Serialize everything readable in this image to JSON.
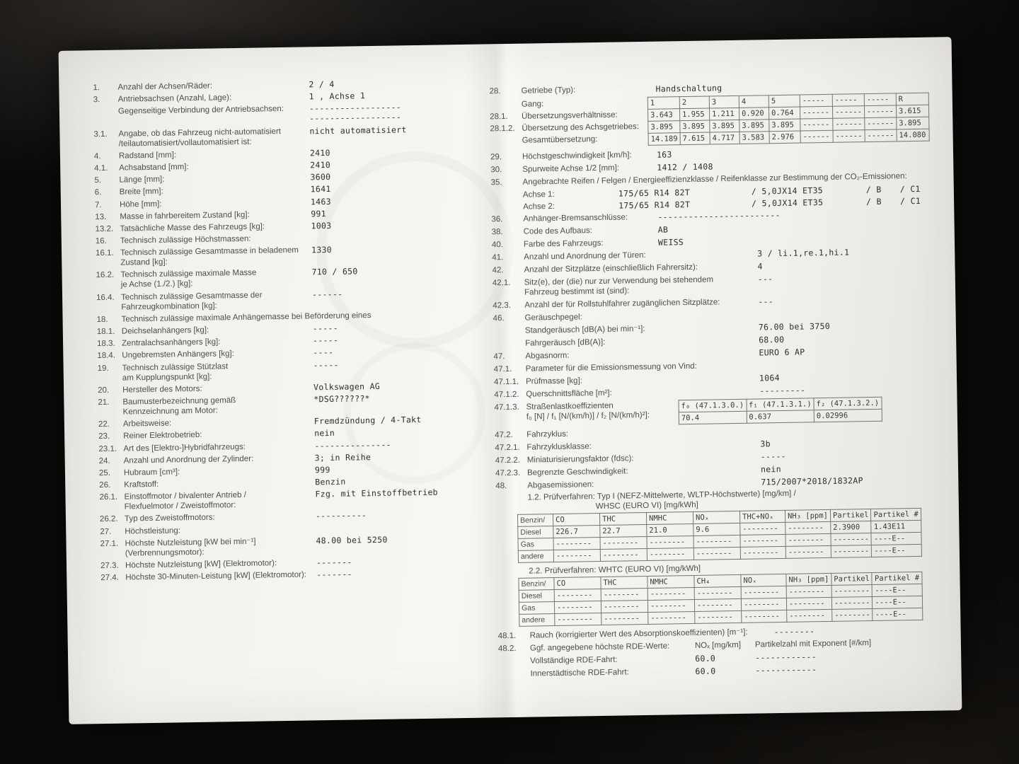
{
  "colors": {
    "photo_background": "#0b0a09",
    "paper": "#f4f3ef",
    "ink_label": "#4c4c4c",
    "ink_value": "#2e2e2e",
    "table_border": "#767470"
  },
  "left": {
    "rows": [
      {
        "n": "1.",
        "l": "Anzahl der Achsen/Räder:",
        "v": "2  / 4"
      },
      {
        "n": "3.",
        "l": "Antriebsachsen (Anzahl, Lage):",
        "v": "1 , Achse 1"
      },
      {
        "n": "",
        "l": "Gegenseitige Verbindung der Antriebsachsen:",
        "v": "------------------",
        "v2": "------------------"
      },
      {
        "n": "3.1.",
        "l": "Angabe, ob das Fahrzeug nicht-automatisiert",
        "l2": "/teilautomatisiert/vollautomatisiert ist:",
        "v": "nicht automatisiert"
      },
      {
        "n": "4.",
        "l": "Radstand [mm]:",
        "v": "2410"
      },
      {
        "n": "4.1.",
        "l": "Achsabstand [mm]:",
        "v": "2410"
      },
      {
        "n": "5.",
        "l": "Länge [mm]:",
        "v": "3600"
      },
      {
        "n": "6.",
        "l": "Breite [mm]:",
        "v": "1641"
      },
      {
        "n": "7.",
        "l": "Höhe [mm]:",
        "v": "1463"
      },
      {
        "n": "13.",
        "l": "Masse in fahrbereitem Zustand [kg]:",
        "v": "991"
      },
      {
        "n": "13.2.",
        "l": "Tatsächliche Masse des Fahrzeugs [kg]:",
        "v": "1003"
      },
      {
        "n": "16.",
        "l": "Technisch zulässige Höchstmassen:",
        "v": ""
      },
      {
        "n": "16.1.",
        "l": "Technisch zulässige Gesamtmasse in beladenem",
        "l2": "Zustand [kg]:",
        "v": "1330"
      },
      {
        "n": "16.2.",
        "l": "Technisch zulässige maximale Masse",
        "l2": "je Achse (1./2.) [kg]:",
        "v": "710  / 650"
      },
      {
        "n": "16.4.",
        "l": "Technisch zulässige Gesamtmasse der",
        "l2": "Fahrzeugkombination [kg]:",
        "v": "------"
      },
      {
        "n": "18.",
        "l": "Technisch zulässige maximale Anhängemasse bei Beförderung eines",
        "v": ""
      },
      {
        "n": "18.1.",
        "l": "Deichselanhängers [kg]:",
        "v": "-----"
      },
      {
        "n": "18.3.",
        "l": "Zentralachsanhängers [kg]:",
        "v": "-----"
      },
      {
        "n": "18.4.",
        "l": "Ungebremsten Anhängers [kg]:",
        "v": "----"
      },
      {
        "n": "19.",
        "l": "Technisch zulässige Stützlast",
        "l2": "am Kupplungspunkt [kg]:",
        "v": "-----"
      },
      {
        "n": "20.",
        "l": "Hersteller des Motors:",
        "v": "Volkswagen AG"
      },
      {
        "n": "21.",
        "l": "Baumusterbezeichnung gemäß",
        "l2": "Kennzeichnung am Motor:",
        "v": "*DSG??????*"
      },
      {
        "n": "22.",
        "l": "Arbeitsweise:",
        "v": "Fremdzündung / 4-Takt"
      },
      {
        "n": "23.",
        "l": "Reiner Elektrobetrieb:",
        "v": "nein"
      },
      {
        "n": "23.1.",
        "l": "Art des [Elektro-]Hybridfahrzeugs:",
        "v": "---------------"
      },
      {
        "n": "24.",
        "l": "Anzahl und Anordnung der Zylinder:",
        "v": "3; in Reihe"
      },
      {
        "n": "25.",
        "l": "Hubraum [cm³]:",
        "v": "999"
      },
      {
        "n": "26.",
        "l": "Kraftstoff:",
        "v": "Benzin"
      },
      {
        "n": "26.1.",
        "l": "Einstoffmotor / bivalenter Antrieb /",
        "l2": "Flexfuelmotor / Zweistoffmotor:",
        "v": "Fzg. mit Einstoffbetrieb"
      },
      {
        "n": "26.2.",
        "l": "Typ des Zweistoffmotors:",
        "v": "----------"
      },
      {
        "n": "27.",
        "l": "Höchstleistung:",
        "v": ""
      },
      {
        "n": "27.1.",
        "l": "Höchste Nutzleistung [kW bei min⁻¹]",
        "l2": "(Verbrennungsmotor):",
        "v": "48.00  bei 5250"
      },
      {
        "n": "27.3.",
        "l": "Höchste Nutzleistung [kW] (Elektromotor):",
        "v": "-------"
      },
      {
        "n": "27.4.",
        "l": "Höchste 30-Minuten-Leistung [kW] (Elektromotor):",
        "v": "-------"
      }
    ]
  },
  "right": {
    "r28": {
      "n": "28.",
      "l": "Getriebe (Typ):",
      "v": "Handschaltung"
    },
    "gear": {
      "labels": [
        {
          "n": "",
          "l": "Gang:"
        },
        {
          "n": "28.1.",
          "l": "Übersetzungsverhältnisse:"
        },
        {
          "n": "28.1.2.",
          "l": "Übersetzung des Achsgetriebes:"
        },
        {
          "n": "",
          "l": "Gesamtübersetzung:"
        }
      ],
      "table": [
        {
          "c0": "1",
          "c1": "2",
          "c2": "3",
          "c3": "4",
          "c4": "5",
          "c5": "-----",
          "c6": "-----",
          "c7": "-----",
          "c8": "R"
        },
        {
          "c0": "3.643",
          "c1": "1.955",
          "c2": "1.211",
          "c3": "0.920",
          "c4": "0.764",
          "c5": "------",
          "c6": "------",
          "c7": "------",
          "c8": "3.615"
        },
        {
          "c0": "3.895",
          "c1": "3.895",
          "c2": "3.895",
          "c3": "3.895",
          "c4": "3.895",
          "c5": "------",
          "c6": "------",
          "c7": "------",
          "c8": "3.895"
        },
        {
          "c0": "14.189",
          "c1": "7.615",
          "c2": "4.717",
          "c3": "3.583",
          "c4": "2.976",
          "c5": "------",
          "c6": "------",
          "c7": "------",
          "c8": "14.080"
        }
      ]
    },
    "rows_b": [
      {
        "n": "29.",
        "l": "Höchstgeschwindigkeit [km/h]:",
        "v": "163"
      },
      {
        "n": "30.",
        "l": "Spurweite Achse 1/2 [mm]:",
        "v": "1412  / 1408"
      }
    ],
    "r35": {
      "n": "35.",
      "l": "Angebrachte Reifen / Felgen / Energieeffizienzklasse / Reifenklasse zur Bestimmung der CO₂-Emissionen:"
    },
    "tires": [
      {
        "l": "Achse 1:",
        "tire": "175/65 R14 82T",
        "rim": "/ 5,0JX14 ET35",
        "eff": "/ B",
        "cls": "/ C1"
      },
      {
        "l": "Achse 2:",
        "tire": "175/65 R14 82T",
        "rim": "/ 5,0JX14 ET35",
        "eff": "/ B",
        "cls": "/ C1"
      }
    ],
    "rows_c": [
      {
        "n": "36.",
        "l": "Anhänger-Bremsanschlüsse:",
        "v": "------------------------"
      },
      {
        "n": "38.",
        "l": "Code des Aufbaus:",
        "v": "AB"
      },
      {
        "n": "40.",
        "l": "Farbe des Fahrzeugs:",
        "v": "WEISS"
      }
    ],
    "rows_d": [
      {
        "n": "41.",
        "l": "Anzahl und Anordnung der Türen:",
        "v": "3  / li.1,re.1,hi.1"
      },
      {
        "n": "42.",
        "l": "Anzahl der Sitzplätze (einschließlich Fahrersitz):",
        "v": "4"
      },
      {
        "n": "42.1.",
        "l": "Sitz(e), der (die) nur zur Verwendung bei stehendem",
        "l2": "Fahrzeug bestimmt ist (sind):",
        "v": "---"
      },
      {
        "n": "42.3.",
        "l": "Anzahl der für Rollstuhlfahrer zugänglichen Sitzplätze:",
        "v": "---"
      },
      {
        "n": "46.",
        "l": "Geräuschpegel:",
        "v": ""
      },
      {
        "n": "",
        "l": "Standgeräusch [dB(A) bei min⁻¹]:",
        "v": "76.00  bei 3750"
      },
      {
        "n": "",
        "l": "Fahrgeräusch [dB(A)]:",
        "v": "68.00"
      },
      {
        "n": "47.",
        "l": "Abgasnorm:",
        "v": "EURO 6 AP"
      },
      {
        "n": "47.1.",
        "l": "Parameter für die Emissionsmessung von Vind:",
        "v": ""
      },
      {
        "n": "47.1.1.",
        "l": "Prüfmasse [kg]:",
        "v": "1064"
      },
      {
        "n": "47.1.2.",
        "l": "Querschnittsfläche [m²]:",
        "v": "---------"
      }
    ],
    "road_load": {
      "n": "47.1.3.",
      "l1": "Straßenlastkoeffizienten",
      "l2": "f₀ [N] / f₁ [N/(km/h)] / f₂ [N/(km/h)²]:",
      "table": [
        {
          "c0": "f₀ (47.1.3.0.)",
          "c1": "f₁ (47.1.3.1.)",
          "c2": "f₂ (47.1.3.2.)"
        },
        {
          "c0": "70.4",
          "c1": "0.637",
          "c2": "0.02996"
        }
      ]
    },
    "rows_e": [
      {
        "n": "47.2.",
        "l": "Fahrzyklus:",
        "v": ""
      },
      {
        "n": "47.2.1.",
        "l": "Fahrzyklusklasse:",
        "v": "3b"
      },
      {
        "n": "47.2.2.",
        "l": "Miniaturisierungsfaktor (fdsc):",
        "v": "-----"
      },
      {
        "n": "47.2.3.",
        "l": "Begrenzte Geschwindigkeit:",
        "v": "nein"
      },
      {
        "n": "48.",
        "l": "Abgasemissionen:",
        "v": "715/2007*2018/1832AP"
      }
    ],
    "emissions": {
      "proc1_l1": "1.2. Prüfverfahren: Typ I (NEFZ-Mittelwerte, WLTP-Höchstwerte) [mg/km] /",
      "proc1_l2": "WHSC (EURO VI) [mg/kWh]",
      "table1": [
        {
          "label": "Benzin/",
          "c0": "CO",
          "c1": "THC",
          "c2": "NMHC",
          "c3": "NOₓ",
          "c4": "THC+NOₓ",
          "c5": "NH₃ [ppm]",
          "c6": "Partikel",
          "c7": "Partikel #"
        },
        {
          "label": "Diesel",
          "c0": "226.7",
          "c1": "22.7",
          "c2": "21.0",
          "c3": "9.6",
          "c4": "--------",
          "c5": "--------",
          "c6": "2.3900",
          "c7": "1.43E11"
        },
        {
          "label": "Gas",
          "c0": "--------",
          "c1": "--------",
          "c2": "--------",
          "c3": "--------",
          "c4": "--------",
          "c5": "--------",
          "c6": "--------",
          "c7": "----E--"
        },
        {
          "label": "andere",
          "c0": "--------",
          "c1": "--------",
          "c2": "--------",
          "c3": "--------",
          "c4": "--------",
          "c5": "--------",
          "c6": "--------",
          "c7": "----E--"
        }
      ],
      "proc2": "2.2. Prüfverfahren: WHTC (EURO VI) [mg/kWh]",
      "table2": [
        {
          "label": "Benzin/",
          "c0": "CO",
          "c1": "THC",
          "c2": "NMHC",
          "c3": "CH₄",
          "c4": "NOₓ",
          "c5": "NH₃ [ppm]",
          "c6": "Partikel",
          "c7": "Partikel #"
        },
        {
          "label": "Diesel",
          "c0": "--------",
          "c1": "--------",
          "c2": "--------",
          "c3": "--------",
          "c4": "--------",
          "c5": "--------",
          "c6": "--------",
          "c7": "----E--"
        },
        {
          "label": "Gas",
          "c0": "--------",
          "c1": "--------",
          "c2": "--------",
          "c3": "--------",
          "c4": "--------",
          "c5": "--------",
          "c6": "--------",
          "c7": "----E--"
        },
        {
          "label": "andere",
          "c0": "--------",
          "c1": "--------",
          "c2": "--------",
          "c3": "--------",
          "c4": "--------",
          "c5": "--------",
          "c6": "--------",
          "c7": "----E--"
        }
      ]
    },
    "tail": {
      "r481": {
        "n": "48.1.",
        "l": "Rauch (korrigierter Wert des Absorptionskoeffizienten) [m⁻¹]:",
        "v": "--------"
      },
      "r482": {
        "n": "48.2.",
        "l": "Ggf. angegebene höchste RDE-Werte:",
        "c1": "NOₓ [mg/km]",
        "c2": "Partikelzahl mit Exponent [#/km]"
      },
      "rde": [
        {
          "l": "Vollständige RDE-Fahrt:",
          "v1": "60.0",
          "v2": "------------"
        },
        {
          "l": "Innerstädtische RDE-Fahrt:",
          "v1": "60.0",
          "v2": "------------"
        }
      ]
    }
  }
}
